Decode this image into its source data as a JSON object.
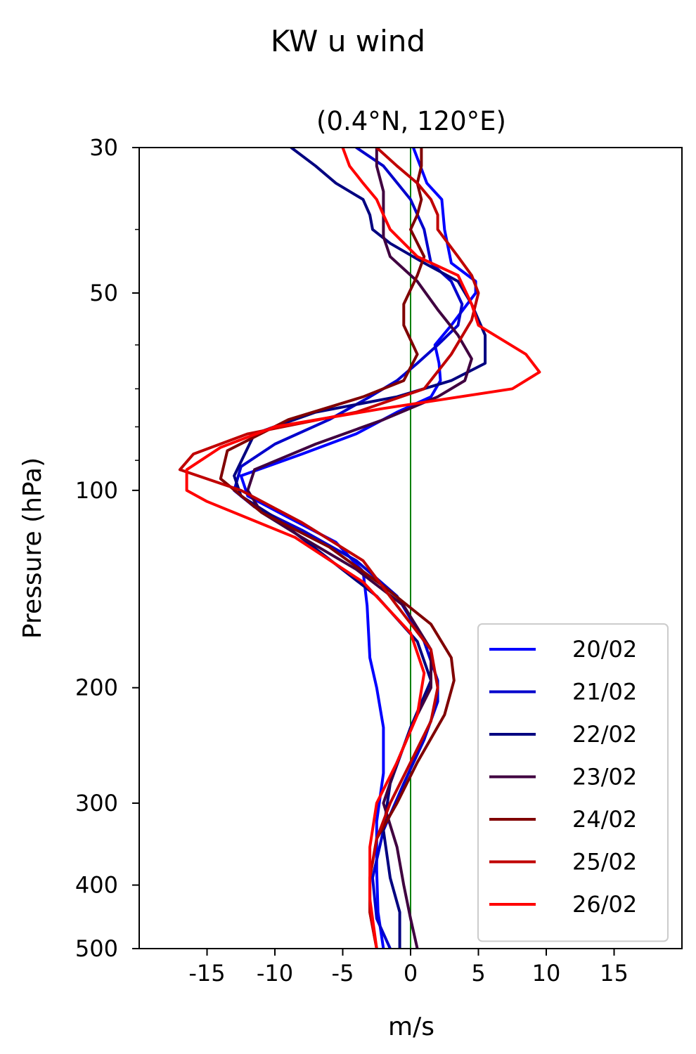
{
  "chart_data": {
    "type": "line",
    "title": "KW u wind",
    "subtitle": "(0.4°N, 120°E)",
    "xlabel": "m/s",
    "ylabel": "Pressure (hPa)",
    "xlim": [
      -20,
      20
    ],
    "ylim": [
      500,
      30
    ],
    "y_scale": "log",
    "x_ticks": [
      -15,
      -10,
      -5,
      0,
      5,
      10,
      15
    ],
    "x_tick_labels": [
      "-15",
      "-10",
      "-5",
      "0",
      "5",
      "10",
      "15"
    ],
    "y_ticks": [
      30,
      50,
      100,
      200,
      300,
      400,
      500
    ],
    "y_tick_labels": [
      "30",
      "50",
      "100",
      "200",
      "300",
      "400",
      "500"
    ],
    "y_minor_ticks": [
      40,
      60,
      70,
      80,
      90
    ],
    "reference_line": {
      "x": 0,
      "color": "#008000"
    },
    "legend_position": "lower-right",
    "grid": false,
    "series": [
      {
        "name": "20/02",
        "color": "#0000ff",
        "x": [
          0.2,
          1.2,
          2.3,
          2.5,
          3.0,
          4.8,
          4.8,
          3.0,
          1.8,
          2.1,
          2.2,
          1.5,
          -1.0,
          -4.0,
          -8.0,
          -12.5,
          -12.0,
          -9.0,
          -5.5,
          -3.5,
          -3.2,
          -3.0,
          -2.5,
          -2.0,
          -2.0,
          -2.5,
          -2.5,
          -2.4,
          -2.0
        ],
        "y": [
          30,
          34,
          36,
          40,
          45,
          48,
          50,
          56,
          60,
          64,
          68,
          72,
          76,
          82,
          88,
          95,
          102,
          110,
          120,
          133,
          150,
          180,
          200,
          230,
          270,
          320,
          380,
          440,
          500
        ]
      },
      {
        "name": "21/02",
        "color": "#0000cc",
        "x": [
          -4.0,
          -2.0,
          0.0,
          1.0,
          1.5,
          3.0,
          3.8,
          3.5,
          2.0,
          0.5,
          -1.0,
          -3.0,
          -6.0,
          -10.0,
          -12.5,
          -13.0,
          -11.5,
          -8.0,
          -4.0,
          -1.0,
          1.0,
          2.0,
          2.0,
          1.0,
          -0.5,
          -2.0,
          -2.8,
          -2.5,
          -1.5
        ],
        "y": [
          30,
          32,
          36,
          40,
          45,
          48,
          52,
          56,
          60,
          64,
          68,
          72,
          78,
          85,
          92,
          100,
          106,
          115,
          128,
          145,
          170,
          195,
          210,
          240,
          280,
          330,
          390,
          450,
          500
        ]
      },
      {
        "name": "22/02",
        "color": "#000080",
        "x": [
          -8.8,
          -7.0,
          -5.5,
          -3.5,
          -3.0,
          -2.8,
          -1.5,
          1.0,
          3.5,
          4.5,
          5.5,
          5.5,
          3.0,
          -1.0,
          -7.0,
          -11.5,
          -13.0,
          -12.5,
          -10.0,
          -6.5,
          -2.5,
          0.5,
          1.5,
          0.0,
          -1.5,
          -2.0,
          -1.5,
          -0.8,
          -0.8
        ],
        "y": [
          30,
          32,
          34,
          36,
          38,
          40,
          42,
          45,
          48,
          52,
          58,
          64,
          68,
          72,
          76,
          82,
          95,
          102,
          110,
          125,
          145,
          170,
          195,
          230,
          280,
          330,
          390,
          440,
          500
        ]
      },
      {
        "name": "23/02",
        "color": "#400040",
        "x": [
          -2.5,
          -2.5,
          -2.0,
          -2.0,
          -2.0,
          -1.5,
          0.5,
          2.0,
          3.5,
          4.5,
          4.0,
          2.0,
          -2.0,
          -7.0,
          -11.5,
          -12.0,
          -11.0,
          -8.0,
          -4.0,
          -0.5,
          1.5,
          1.5,
          0.5,
          -1.0,
          -2.0,
          -1.0,
          -0.5,
          0.0,
          0.5
        ],
        "y": [
          30,
          32,
          35,
          38,
          41,
          44,
          48,
          53,
          58,
          63,
          68,
          72,
          78,
          85,
          93,
          100,
          108,
          118,
          132,
          150,
          175,
          200,
          220,
          260,
          300,
          350,
          400,
          450,
          500
        ]
      },
      {
        "name": "24/02",
        "color": "#800000",
        "x": [
          0.8,
          0.8,
          0.5,
          0.8,
          0.5,
          0.0,
          1.0,
          0.5,
          -0.5,
          -0.5,
          0.5,
          -0.5,
          -3.5,
          -9.0,
          -13.5,
          -14.0,
          -11.0,
          -6.0,
          -2.0,
          1.5,
          3.0,
          3.2,
          2.5,
          0.5,
          -1.0,
          -2.5,
          -3.0,
          -3.0,
          -2.5
        ],
        "y": [
          30,
          32,
          34,
          36,
          38,
          40,
          44,
          47,
          52,
          56,
          62,
          68,
          72,
          78,
          87,
          96,
          108,
          122,
          140,
          160,
          180,
          195,
          220,
          260,
          300,
          340,
          390,
          440,
          500
        ]
      },
      {
        "name": "25/02",
        "color": "#c00000",
        "x": [
          -2.5,
          -1.0,
          0.5,
          1.5,
          2.0,
          2.0,
          3.5,
          4.5,
          5.0,
          4.5,
          3.0,
          1.0,
          -4.0,
          -12.0,
          -16.0,
          -17.0,
          -12.5,
          -8.0,
          -3.5,
          -1.0,
          1.5,
          2.0,
          1.5,
          0.0,
          -1.5,
          -2.5,
          -3.0,
          -3.0,
          -2.5
        ],
        "y": [
          30,
          32,
          34,
          36,
          38,
          40,
          44,
          47,
          50,
          55,
          62,
          70,
          76,
          82,
          88,
          93,
          100,
          112,
          128,
          150,
          175,
          200,
          225,
          260,
          300,
          340,
          390,
          440,
          500
        ]
      },
      {
        "name": "26/02",
        "color": "#ff0000",
        "x": [
          -5.0,
          -4.5,
          -3.5,
          -2.5,
          -2.0,
          -1.5,
          0.5,
          3.5,
          4.5,
          5.0,
          8.5,
          9.5,
          7.5,
          -2.0,
          -10.0,
          -14.0,
          -16.5,
          -16.5,
          -15.0,
          -8.5,
          -3.5,
          0.0,
          1.0,
          0.5,
          -1.0,
          -2.5,
          -3.0,
          -3.0,
          -2.5
        ],
        "y": [
          30,
          32,
          34,
          36,
          38,
          40,
          44,
          47,
          52,
          56,
          62,
          66,
          70,
          75,
          80,
          86,
          93,
          100,
          104,
          118,
          138,
          165,
          190,
          220,
          260,
          300,
          350,
          420,
          500
        ]
      }
    ]
  }
}
